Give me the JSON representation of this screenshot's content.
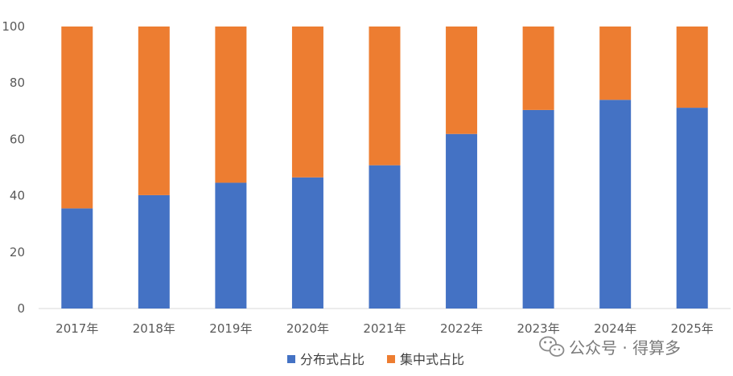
{
  "chart_data": {
    "type": "bar",
    "stacked": true,
    "categories": [
      "2017年",
      "2018年",
      "2019年",
      "2020年",
      "2021年",
      "2022年",
      "2023年",
      "2024年",
      "2025年"
    ],
    "series": [
      {
        "name": "分布式占比",
        "color": "#4472C4",
        "values": [
          35.5,
          40.2,
          44.6,
          46.5,
          50.8,
          61.9,
          70.4,
          74.0,
          71.2
        ]
      },
      {
        "name": "集中式占比",
        "color": "#ED7D31",
        "values": [
          64.5,
          59.8,
          55.4,
          53.5,
          49.2,
          38.1,
          29.6,
          26.0,
          28.8
        ]
      }
    ],
    "ylim": [
      0,
      100
    ],
    "yticks": [
      0,
      20,
      40,
      60,
      80,
      100
    ],
    "grid": false,
    "legend_position": "bottom-center"
  },
  "watermark": {
    "text": "公众号 · 得算多",
    "icon": "wechat-icon"
  }
}
